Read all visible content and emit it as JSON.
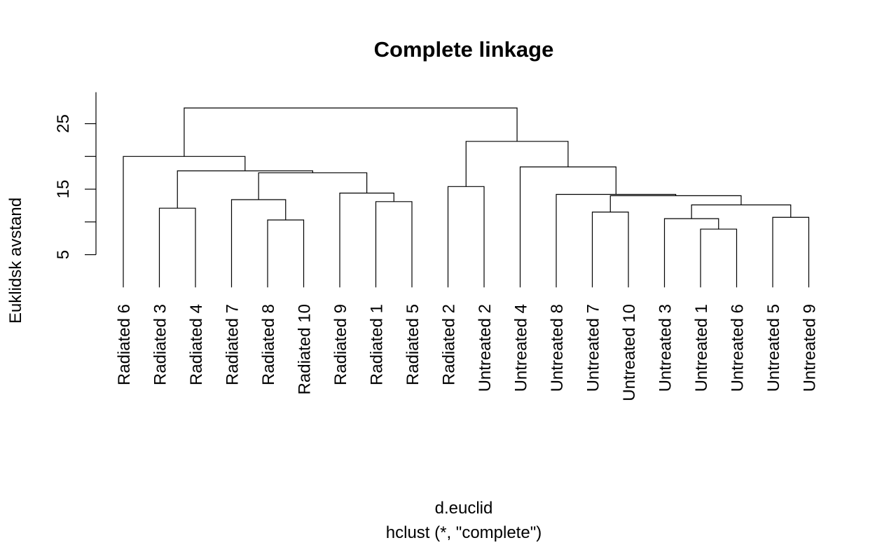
{
  "chart_data": {
    "type": "dendrogram",
    "title": "Complete linkage",
    "ylabel": "Euklidsk avstand",
    "xlabel": "d.euclid",
    "sub": "hclust (*, \"complete\")",
    "yticks": [
      5,
      15,
      25
    ],
    "ylim": [
      0,
      29
    ],
    "leaves": [
      "Radiated 6",
      "Radiated 3",
      "Radiated 4",
      "Radiated 7",
      "Radiated 8",
      "Radiated 10",
      "Radiated 9",
      "Radiated 1",
      "Radiated 5",
      "Radiated 2",
      "Untreated 2",
      "Untreated 4",
      "Untreated 8",
      "Untreated 7",
      "Untreated 10",
      "Untreated 3",
      "Untreated 1",
      "Untreated 6",
      "Untreated 5",
      "Untreated 9"
    ],
    "merges": [
      {
        "left": "Untreated 1",
        "right": "Untreated 6",
        "height": 8.9
      },
      {
        "left": "Radiated 8",
        "right": "Radiated 10",
        "height": 10.3
      },
      {
        "left": "Untreated 3",
        "right": "m1",
        "height": 10.5
      },
      {
        "left": "Untreated 5",
        "right": "Untreated 9",
        "height": 10.7
      },
      {
        "left": "Untreated 7",
        "right": "Untreated 10",
        "height": 11.5
      },
      {
        "left": "Radiated 3",
        "right": "Radiated 4",
        "height": 12.1
      },
      {
        "left": "m3",
        "right": "m4",
        "height": 12.6
      },
      {
        "left": "Radiated 1",
        "right": "Radiated 5",
        "height": 13.1
      },
      {
        "left": "Radiated 7",
        "right": "m2",
        "height": 13.4
      },
      {
        "left": "m5",
        "right": "m7",
        "height": 14.0
      },
      {
        "left": "Untreated 8",
        "right": "m10",
        "height": 14.2
      },
      {
        "left": "Radiated 9",
        "right": "m8",
        "height": 14.4
      },
      {
        "left": "Radiated 2",
        "right": "Untreated 2",
        "height": 15.4
      },
      {
        "left": "m9",
        "right": "m12",
        "height": 17.5
      },
      {
        "left": "m6",
        "right": "m14",
        "height": 17.8
      },
      {
        "left": "Untreated 4",
        "right": "m11",
        "height": 18.4
      },
      {
        "left": "Radiated 6",
        "right": "m15",
        "height": 20.0
      },
      {
        "left": "m13",
        "right": "m16",
        "height": 22.3
      },
      {
        "left": "m17",
        "right": "m18",
        "height": 27.4
      }
    ]
  }
}
